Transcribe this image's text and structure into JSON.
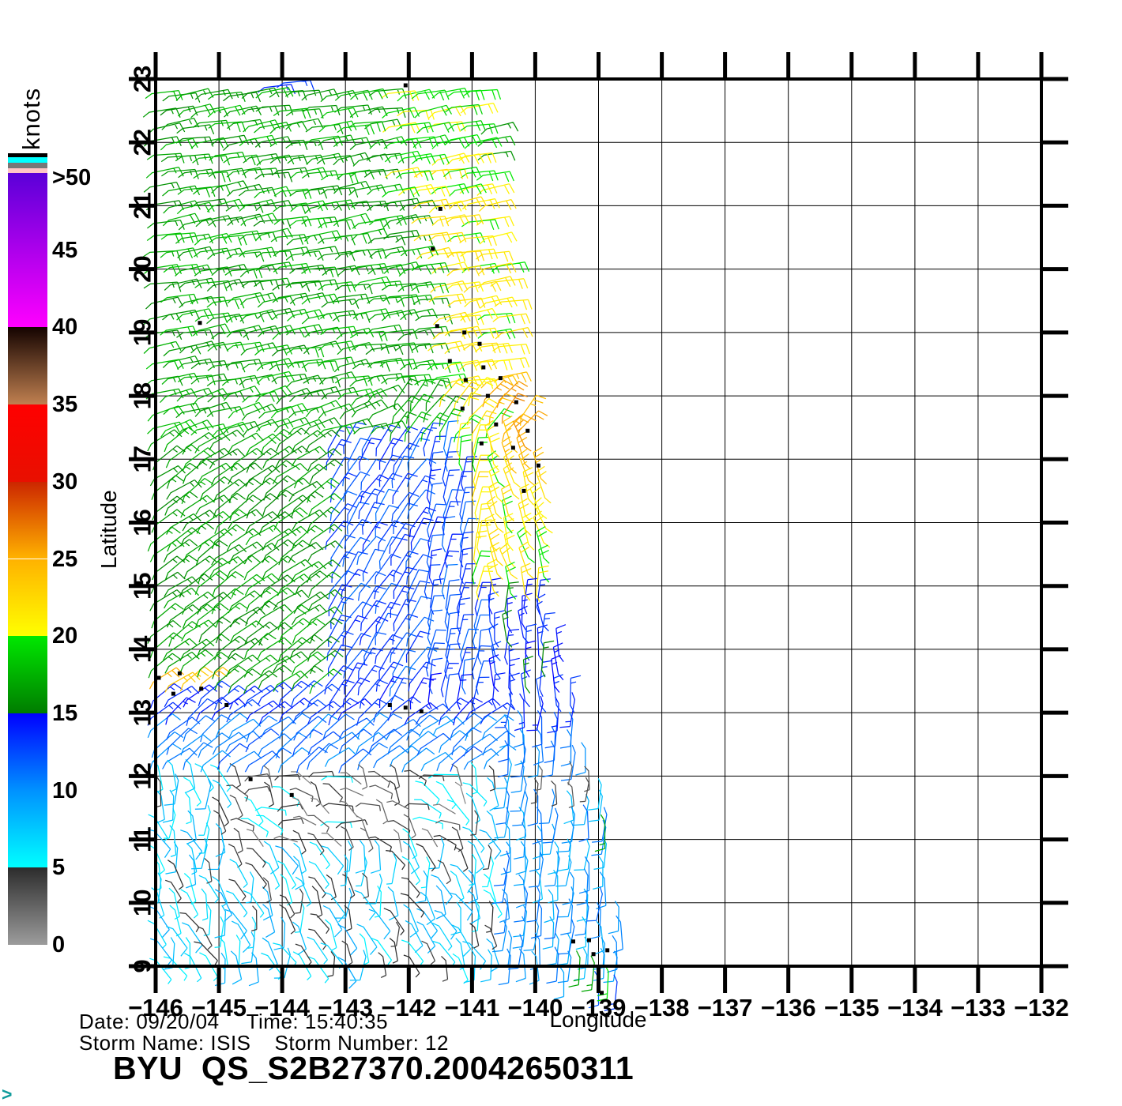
{
  "footer": {
    "date_label": "Date:",
    "date": "09/20/04",
    "time_label": "Time:",
    "time": "15:40:35",
    "storm_name_label": "Storm Name:",
    "storm_name": "ISIS",
    "storm_number_label": "Storm Number:",
    "storm_number": "12",
    "org": "BYU",
    "product_id": "QS_S2B27370.20042650311",
    "prompt": ">"
  },
  "chart_data": {
    "type": "wind_barb_map",
    "title": "BYU QS_S2B27370.20042650311",
    "xlabel": "Longitude",
    "ylabel": "Latitude",
    "xlim": [
      -146,
      -132
    ],
    "ylim": [
      9,
      23
    ],
    "grid": true,
    "xticks": [
      -146,
      -145,
      -144,
      -143,
      -142,
      -141,
      -140,
      -139,
      -138,
      -137,
      -136,
      -135,
      -134,
      -133,
      -132
    ],
    "xtick_labels": [
      "−146",
      "−145",
      "−144",
      "−143",
      "−142",
      "−141",
      "−140",
      "−139",
      "−138",
      "−137",
      "−136",
      "−135",
      "−134",
      "−133",
      "−132"
    ],
    "yticks": [
      9,
      10,
      11,
      12,
      13,
      14,
      15,
      16,
      17,
      18,
      19,
      20,
      21,
      22,
      23
    ],
    "ytick_labels": [
      "9",
      "10",
      "11",
      "12",
      "13",
      "14",
      "15",
      "16",
      "17",
      "18",
      "19",
      "20",
      "21",
      "22",
      "23"
    ],
    "colorbar": {
      "label": "knots",
      "tick_values": [
        0,
        5,
        10,
        15,
        20,
        25,
        30,
        35,
        40,
        50
      ],
      "tick_labels": [
        "0",
        "5",
        "10",
        "15",
        "20",
        "25",
        "30",
        "35",
        "40",
        "45",
        ">50"
      ],
      "label_values": [
        0,
        5,
        10,
        15,
        20,
        25,
        30,
        35,
        40,
        45,
        50
      ],
      "segments": [
        {
          "v0": 0,
          "v1": 5,
          "c0": "#9c9c9c",
          "c1": "#2c2c2c"
        },
        {
          "v0": 5,
          "v1": 10,
          "c0": "#00ffff",
          "c1": "#0092ff"
        },
        {
          "v0": 10,
          "v1": 15,
          "c0": "#0092ff",
          "c1": "#0000ff"
        },
        {
          "v0": 15,
          "v1": 20,
          "c0": "#007c00",
          "c1": "#00e800"
        },
        {
          "v0": 20,
          "v1": 25,
          "c0": "#ffff00",
          "c1": "#ffb200"
        },
        {
          "v0": 25,
          "v1": 30,
          "c0": "#ffb200",
          "c1": "#cc2600"
        },
        {
          "v0": 30,
          "v1": 35,
          "c0": "#e81000",
          "c1": "#ff0000"
        },
        {
          "v0": 35,
          "v1": 40,
          "c0": "#c08050",
          "c1": "#140300"
        },
        {
          "v0": 40,
          "v1": 50,
          "c0": "#ff00ff",
          "c1": "#5a00d8"
        }
      ],
      "top_strips": [
        "#ffc6c6",
        "#777777",
        "#00ffff",
        "#000000"
      ]
    },
    "storm": {
      "name": "ISIS",
      "number": "12",
      "date": "09/20/04",
      "time": "15:40:35"
    },
    "wind_field": {
      "grid_step_deg": 0.25,
      "lon_start": -145.93,
      "lat_start": 9.03,
      "lat_end": 22.95,
      "right_edge": [
        [
          9,
          -138.45
        ],
        [
          9.5,
          -138.6
        ],
        [
          10,
          -138.7
        ],
        [
          11,
          -138.78
        ],
        [
          11.5,
          -138.85
        ],
        [
          12,
          -138.95
        ],
        [
          12.5,
          -139.2
        ],
        [
          13,
          -139.35
        ],
        [
          13.5,
          -139.45
        ],
        [
          14,
          -139.65
        ],
        [
          14.5,
          -139.72
        ],
        [
          15,
          -139.85
        ],
        [
          15.5,
          -139.8
        ],
        [
          16,
          -139.72
        ],
        [
          16.5,
          -139.7
        ],
        [
          17,
          -139.95
        ],
        [
          17.5,
          -140.07
        ],
        [
          18,
          -140.2
        ],
        [
          19,
          -140.28
        ],
        [
          20,
          -140.4
        ],
        [
          21,
          -140.58
        ],
        [
          22,
          -140.65
        ],
        [
          23,
          -140.72
        ]
      ],
      "speed_rules": [
        {
          "lat": [
            13.35,
            13.75
          ],
          "lon": [
            -146.2,
            -145.05
          ],
          "s": 24,
          "j": 1.5
        },
        {
          "lat": [
            16.6,
            18.4
          ],
          "edge": -0.55,
          "s": 25,
          "j": 1.5
        },
        {
          "lat": [
            15.0,
            21.7
          ],
          "edge": -1.25,
          "s": 21,
          "j": 1.3
        },
        {
          "lat": [
            21.2,
            22.8
          ],
          "lon": [
            -142.35,
            -140.8
          ],
          "s": 20,
          "j": 1.2
        },
        {
          "lat": [
            17.3,
            23.2
          ],
          "lon": [
            -146.2,
            -138
          ],
          "s": 17,
          "j": 1.4
        },
        {
          "lat": [
            13.4,
            17.3
          ],
          "lon": [
            -146.2,
            -143.2
          ],
          "s": 16.5,
          "j": 1.2
        },
        {
          "lat": [
            13.4,
            17.3
          ],
          "lon": [
            -143.2,
            -140.85
          ],
          "s": 12.5,
          "j": 1.5
        },
        {
          "lat": [
            13.4,
            15.2
          ],
          "lon": [
            -140.85,
            -138
          ],
          "s": 14,
          "j": 1.8
        },
        {
          "lat": [
            15.2,
            17.3
          ],
          "lon": [
            -140.85,
            -138
          ],
          "s": 18,
          "j": 2
        },
        {
          "lat": [
            12.85,
            13.4
          ],
          "lon": [
            -146.2,
            -138
          ],
          "s": 13.5,
          "j": 1.3
        },
        {
          "lat": [
            12.2,
            12.85
          ],
          "lon": [
            -146.2,
            -138
          ],
          "s": 11,
          "j": 1.4
        },
        {
          "lat": [
            11.6,
            12.7
          ],
          "lon": [
            -140.0,
            -139.1
          ],
          "s": 3.5,
          "j": 2
        },
        {
          "lat": [
            10.85,
            12.25
          ],
          "lon": [
            -144.7,
            -141.1
          ],
          "s": 3.5,
          "j": 2.4
        },
        {
          "lat": [
            8.4,
            12.25
          ],
          "lon": [
            -146.2,
            -140.45
          ],
          "s": 6.5,
          "j": 2.4
        },
        {
          "lat": [
            8.4,
            13.4
          ],
          "lon": [
            -140.45,
            -138
          ],
          "s": 9.5,
          "j": 2
        },
        {
          "lat": [
            8.4,
            23.2
          ],
          "lon": [
            -146.2,
            -138
          ],
          "s": 16,
          "j": 1
        }
      ],
      "dir_rules": [
        {
          "lat": [
            18.2,
            23.2
          ],
          "d": [
            -1,
            0.16
          ],
          "j": 6
        },
        {
          "lat": [
            17.3,
            18.2
          ],
          "lon": [
            -142.3,
            -138
          ],
          "d": [
            -0.62,
            0.79
          ],
          "j": 8
        },
        {
          "lat": [
            17.3,
            18.2
          ],
          "d": [
            -0.95,
            0.3
          ],
          "j": 7
        },
        {
          "lat": [
            13.2,
            17.3
          ],
          "lon": [
            -146.2,
            -143.2
          ],
          "d": [
            -0.82,
            0.57
          ],
          "j": 7
        },
        {
          "lat": [
            13.2,
            17.3
          ],
          "lon": [
            -143.2,
            -141.7
          ],
          "d": [
            -0.55,
            0.83
          ],
          "j": 8
        },
        {
          "lat": [
            13.2,
            17.3
          ],
          "lon": [
            -141.7,
            -140.75
          ],
          "d": [
            -0.22,
            0.97
          ],
          "j": 8
        },
        {
          "lat": [
            15.1,
            17.3
          ],
          "lon": [
            -140.75,
            -138
          ],
          "d": [
            0.3,
            0.95
          ],
          "j": 9
        },
        {
          "lat": [
            13.2,
            15.1
          ],
          "lon": [
            -140.75,
            -138
          ],
          "d": [
            0.05,
            1
          ],
          "j": 12
        },
        {
          "lat": [
            8.4,
            13.2
          ],
          "lon": [
            -140.45,
            -138
          ],
          "d": [
            0.06,
            -1
          ],
          "j": 10
        },
        {
          "lat": [
            12.2,
            13.2
          ],
          "d": [
            -0.75,
            0.6
          ],
          "j": 9
        },
        {
          "lat": [
            10.85,
            12.2
          ],
          "lon": [
            -144.7,
            -141.1
          ],
          "d": [
            -0.7,
            -0.5
          ],
          "j": 45
        },
        {
          "lat": [
            8.4,
            12.2
          ],
          "d": [
            -0.25,
            -0.95
          ],
          "j": 30
        },
        {
          "lat": [
            8.4,
            23.2
          ],
          "d": [
            -1,
            0.15
          ],
          "j": 6
        }
      ],
      "extra_barbs": [
        [
          -144.15,
          22.88,
          14,
          -1,
          0.12
        ],
        [
          -143.85,
          22.95,
          13,
          -1,
          0.1
        ],
        [
          -139.3,
          9.0,
          17,
          0.05,
          -1
        ],
        [
          -139.08,
          8.92,
          17,
          0.1,
          -1
        ],
        [
          -138.85,
          8.78,
          20,
          0.05,
          -1
        ],
        [
          -139.0,
          8.68,
          12,
          0,
          -1
        ],
        [
          -138.72,
          8.62,
          13,
          0.1,
          -1
        ],
        [
          -139.55,
          8.78,
          9,
          0,
          -1
        ],
        [
          -138.9,
          11.15,
          17,
          0,
          -1
        ]
      ],
      "rain_flags": [
        [
          -142.05,
          22.9
        ],
        [
          -141.5,
          20.95
        ],
        [
          -141.62,
          20.32
        ],
        [
          -145.3,
          19.15
        ],
        [
          -141.55,
          19.1
        ],
        [
          -141.12,
          19.0
        ],
        [
          -140.88,
          18.82
        ],
        [
          -141.35,
          18.55
        ],
        [
          -140.82,
          18.45
        ],
        [
          -141.1,
          18.25
        ],
        [
          -140.55,
          18.28
        ],
        [
          -140.75,
          18.0
        ],
        [
          -140.3,
          17.9
        ],
        [
          -141.15,
          17.8
        ],
        [
          -140.62,
          17.55
        ],
        [
          -140.12,
          17.45
        ],
        [
          -140.85,
          17.25
        ],
        [
          -140.35,
          17.18
        ],
        [
          -139.95,
          16.9
        ],
        [
          -140.18,
          16.5
        ],
        [
          -145.95,
          13.55
        ],
        [
          -145.62,
          13.62
        ],
        [
          -145.72,
          13.3
        ],
        [
          -145.28,
          13.38
        ],
        [
          -144.88,
          13.12
        ],
        [
          -142.3,
          13.12
        ],
        [
          -142.05,
          13.08
        ],
        [
          -141.8,
          13.02
        ],
        [
          -143.85,
          11.7
        ],
        [
          -144.5,
          11.95
        ],
        [
          -139.4,
          9.39
        ],
        [
          -139.15,
          9.41
        ],
        [
          -139.08,
          9.19
        ],
        [
          -138.86,
          9.25
        ],
        [
          -138.95,
          8.58
        ]
      ]
    }
  }
}
